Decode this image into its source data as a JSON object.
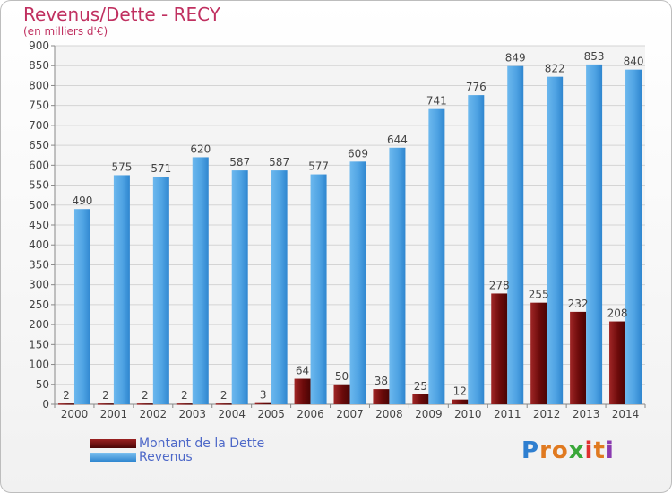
{
  "title": "Revenus/Dette - RECY",
  "subtitle": "(en milliers d'€)",
  "legend": {
    "dette": "Montant de la Dette",
    "revenus": "Revenus"
  },
  "logo": "Proxiti",
  "colors": {
    "dette": "#6b0a0a",
    "revenus": "#4fa3e3",
    "title": "#c03060",
    "legend_text": "#4d68c8"
  },
  "chart_data": {
    "type": "bar",
    "title": "Revenus/Dette - RECY",
    "subtitle": "(en milliers d'€)",
    "xlabel": "",
    "ylabel": "",
    "ylim": [
      0,
      900
    ],
    "yticks": [
      0,
      50,
      100,
      150,
      200,
      250,
      300,
      350,
      400,
      450,
      500,
      550,
      600,
      650,
      700,
      750,
      800,
      850,
      900
    ],
    "grid": true,
    "categories": [
      "2000",
      "2001",
      "2002",
      "2003",
      "2004",
      "2005",
      "2006",
      "2007",
      "2008",
      "2009",
      "2010",
      "2011",
      "2012",
      "2013",
      "2014"
    ],
    "series": [
      {
        "name": "Montant de la Dette",
        "values": [
          2,
          2,
          2,
          2,
          2,
          3,
          64,
          50,
          38,
          25,
          12,
          278,
          255,
          232,
          208
        ]
      },
      {
        "name": "Revenus",
        "values": [
          490,
          575,
          571,
          620,
          587,
          587,
          577,
          609,
          644,
          741,
          776,
          849,
          822,
          853,
          840
        ]
      }
    ]
  }
}
